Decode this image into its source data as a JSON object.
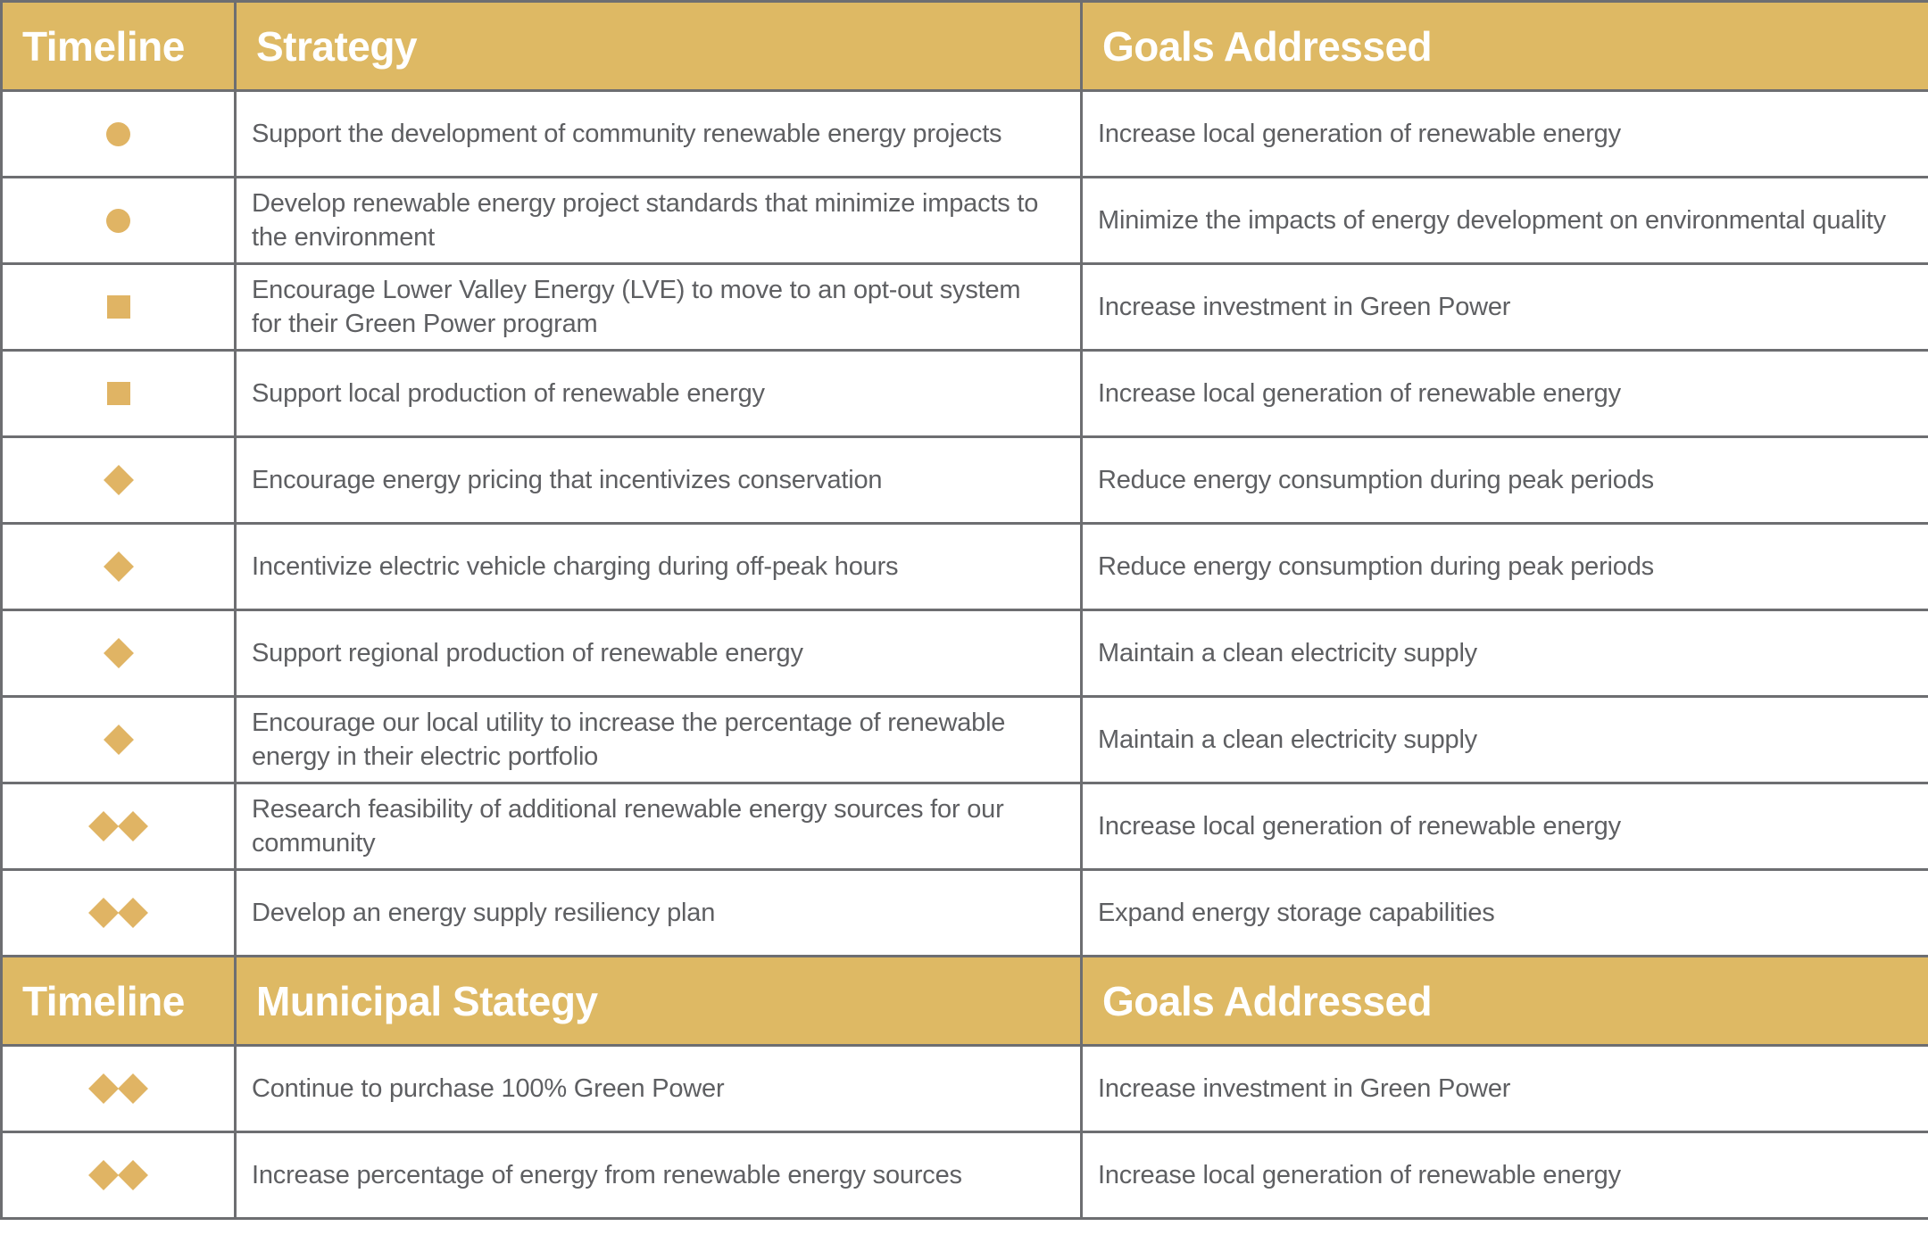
{
  "colors": {
    "header_bg": "#DEB964",
    "symbol_gold": "#E0B464",
    "border_gray": "#6D6E71",
    "body_text": "#5E5F62",
    "header_text": "#FFFFFF"
  },
  "table": {
    "sections": [
      {
        "header": {
          "timeline": "Timeline",
          "strategy": "Strategy",
          "goals": "Goals Addressed"
        },
        "rows": [
          {
            "symbol": "circle",
            "strategy": "Support the development of community renewable energy projects",
            "goals": "Increase local generation of renewable energy"
          },
          {
            "symbol": "circle",
            "strategy": "Develop renewable energy project standards that minimize impacts to the environment",
            "goals": "Minimize the impacts of energy development on environmental quality"
          },
          {
            "symbol": "square",
            "strategy": "Encourage Lower Valley Energy (LVE) to move to an opt-out system for their Green Power program",
            "goals": "Increase investment in Green Power"
          },
          {
            "symbol": "square",
            "strategy": "Support local production of renewable energy",
            "goals": "Increase local generation of renewable energy"
          },
          {
            "symbol": "diamond",
            "strategy": "Encourage energy pricing that incentivizes conservation",
            "goals": "Reduce energy consumption during peak periods"
          },
          {
            "symbol": "diamond",
            "strategy": "Incentivize electric vehicle charging during off-peak hours",
            "goals": "Reduce energy consumption during peak periods"
          },
          {
            "symbol": "diamond",
            "strategy": "Support regional production of renewable energy",
            "goals": "Maintain a clean electricity supply"
          },
          {
            "symbol": "diamond",
            "strategy": "Encourage our local utility to increase the percentage of renewable energy in their electric portfolio",
            "goals": "Maintain a clean electricity supply"
          },
          {
            "symbol": "diamond+diamond",
            "strategy": "Research feasibility of additional renewable energy sources for our community",
            "goals": "Increase local generation of renewable energy"
          },
          {
            "symbol": "diamond+diamond",
            "strategy": "Develop an energy supply resiliency plan",
            "goals": "Expand energy storage capabilities"
          }
        ]
      },
      {
        "header": {
          "timeline": "Timeline",
          "strategy": "Municipal Stategy",
          "goals": "Goals Addressed"
        },
        "rows": [
          {
            "symbol": "diamond+diamond",
            "strategy": "Continue to purchase 100% Green Power",
            "goals": "Increase investment in Green Power"
          },
          {
            "symbol": "diamond+diamond",
            "strategy": "Increase percentage of energy from renewable energy sources",
            "goals": "Increase local generation of renewable energy"
          }
        ]
      }
    ]
  }
}
